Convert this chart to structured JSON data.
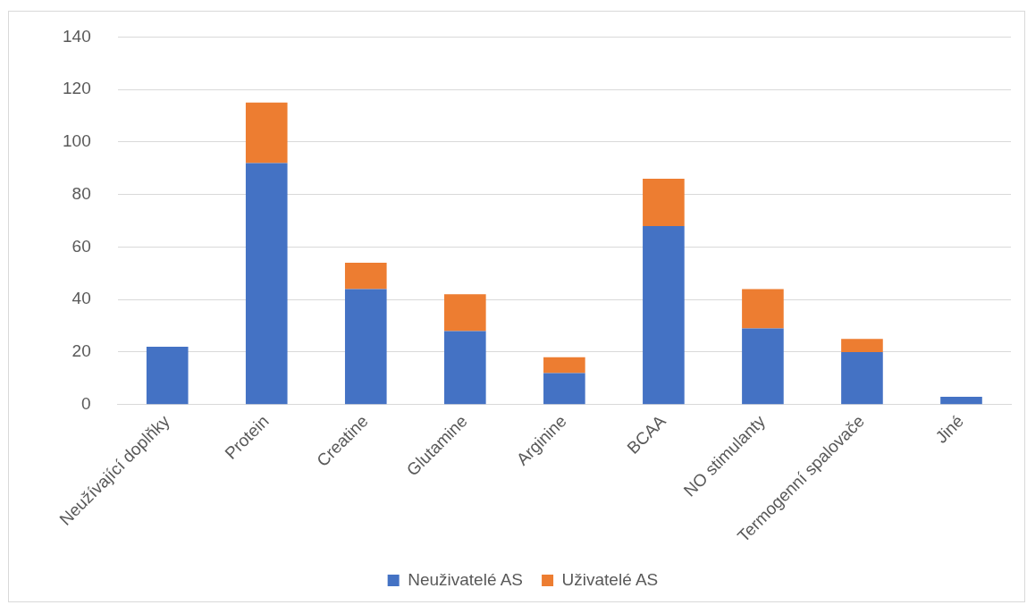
{
  "chart_data": {
    "type": "bar",
    "stacked": true,
    "categories": [
      "Neužívající doplňky",
      "Protein",
      "Creatine",
      "Glutamine",
      "Arginine",
      "BCAA",
      "NO stimulanty",
      "Termogenní spalovače",
      "Jiné"
    ],
    "series": [
      {
        "name": "Neuživatelé AS",
        "color": "#4472c4",
        "values": [
          22,
          92,
          44,
          28,
          12,
          68,
          29,
          20,
          3
        ]
      },
      {
        "name": "Uživatelé AS",
        "color": "#ed7d31",
        "values": [
          0,
          23,
          10,
          14,
          6,
          18,
          15,
          5,
          0
        ]
      }
    ],
    "ylim": [
      0,
      140
    ],
    "yticks": [
      0,
      20,
      40,
      60,
      80,
      100,
      120,
      140
    ],
    "grid": "y",
    "legend": "bottom"
  }
}
